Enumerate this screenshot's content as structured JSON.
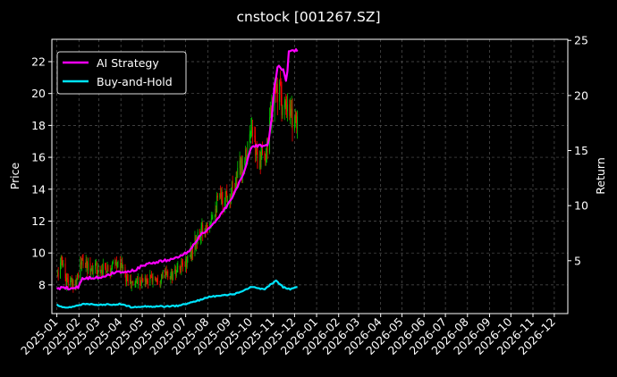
{
  "chart_data": {
    "type": "line",
    "title": "cnstock [001267.SZ]",
    "xlabel": "",
    "ylabel": "Price",
    "y2label": "Return",
    "grid": true,
    "legend_position": "top-left",
    "xlim": [
      "2024-12-25",
      "2026-12-20"
    ],
    "ylim": [
      6.2,
      23.4
    ],
    "y2lim": [
      0.2,
      25.1
    ],
    "x_ticks": [
      "2025-01",
      "2025-02",
      "2025-03",
      "2025-04",
      "2025-05",
      "2025-06",
      "2025-07",
      "2025-08",
      "2025-09",
      "2025-10",
      "2025-11",
      "2025-12",
      "2026-01",
      "2026-02",
      "2026-03",
      "2026-04",
      "2026-05",
      "2026-06",
      "2026-07",
      "2026-08",
      "2026-09",
      "2026-10",
      "2026-11",
      "2026-12"
    ],
    "y_ticks": [
      8,
      10,
      12,
      14,
      16,
      18,
      20,
      22
    ],
    "y2_ticks": [
      5,
      10,
      15,
      20,
      25
    ],
    "colors": {
      "ai": "#ff00ff",
      "bh": "#00e5ff",
      "up": "#00c000",
      "down": "#ff0000",
      "grid": "#555555"
    },
    "candles": {
      "start": "2025-01-02",
      "end": "2025-12-05",
      "anchors": [
        [
          "2025-01-02",
          8.6
        ],
        [
          "2025-01-08",
          9.6
        ],
        [
          "2025-01-14",
          8.3
        ],
        [
          "2025-01-25",
          8.0
        ],
        [
          "2025-02-05",
          9.4
        ],
        [
          "2025-02-15",
          9.1
        ],
        [
          "2025-03-01",
          9.0
        ],
        [
          "2025-03-15",
          9.1
        ],
        [
          "2025-04-01",
          9.3
        ],
        [
          "2025-04-08",
          8.5
        ],
        [
          "2025-04-15",
          8.0
        ],
        [
          "2025-04-25",
          8.3
        ],
        [
          "2025-05-15",
          8.4
        ],
        [
          "2025-06-01",
          8.6
        ],
        [
          "2025-06-15",
          8.6
        ],
        [
          "2025-07-01",
          9.4
        ],
        [
          "2025-07-15",
          10.6
        ],
        [
          "2025-08-01",
          12.0
        ],
        [
          "2025-08-15",
          13.2
        ],
        [
          "2025-09-01",
          13.8
        ],
        [
          "2025-09-15",
          15.2
        ],
        [
          "2025-10-01",
          17.5
        ],
        [
          "2025-10-10",
          16.0
        ],
        [
          "2025-10-20",
          15.8
        ],
        [
          "2025-11-01",
          19.5
        ],
        [
          "2025-11-08",
          20.5
        ],
        [
          "2025-11-15",
          19.0
        ],
        [
          "2025-11-25",
          18.5
        ],
        [
          "2025-12-05",
          18.5
        ]
      ]
    },
    "series": [
      {
        "name": "AI Strategy",
        "axis": "right",
        "points": [
          [
            "2025-01-01",
            2.45
          ],
          [
            "2025-01-10",
            2.55
          ],
          [
            "2025-01-20",
            2.5
          ],
          [
            "2025-02-01",
            2.6
          ],
          [
            "2025-02-05",
            3.4
          ],
          [
            "2025-02-20",
            3.45
          ],
          [
            "2025-03-10",
            3.5
          ],
          [
            "2025-03-20",
            3.9
          ],
          [
            "2025-04-01",
            4.0
          ],
          [
            "2025-04-20",
            4.1
          ],
          [
            "2025-05-01",
            4.6
          ],
          [
            "2025-06-01",
            5.0
          ],
          [
            "2025-06-20",
            5.3
          ],
          [
            "2025-07-05",
            5.8
          ],
          [
            "2025-07-20",
            7.2
          ],
          [
            "2025-08-10",
            8.4
          ],
          [
            "2025-09-01",
            10.3
          ],
          [
            "2025-09-10",
            11.5
          ],
          [
            "2025-09-20",
            12.8
          ],
          [
            "2025-10-01",
            15.4
          ],
          [
            "2025-10-25",
            15.5
          ],
          [
            "2025-10-30",
            18.0
          ],
          [
            "2025-11-03",
            21.0
          ],
          [
            "2025-11-08",
            22.8
          ],
          [
            "2025-11-15",
            22.3
          ],
          [
            "2025-11-20",
            21.2
          ],
          [
            "2025-11-23",
            24.0
          ],
          [
            "2025-12-05",
            24.1
          ]
        ]
      },
      {
        "name": "Buy-and-Hold",
        "axis": "right",
        "points": [
          [
            "2025-01-01",
            1.0
          ],
          [
            "2025-01-10",
            0.8
          ],
          [
            "2025-01-20",
            0.75
          ],
          [
            "2025-02-10",
            1.1
          ],
          [
            "2025-03-01",
            1.0
          ],
          [
            "2025-04-01",
            1.05
          ],
          [
            "2025-04-15",
            0.8
          ],
          [
            "2025-05-01",
            0.85
          ],
          [
            "2025-06-01",
            0.85
          ],
          [
            "2025-06-20",
            0.9
          ],
          [
            "2025-07-15",
            1.3
          ],
          [
            "2025-08-01",
            1.7
          ],
          [
            "2025-08-15",
            1.8
          ],
          [
            "2025-09-01",
            1.9
          ],
          [
            "2025-09-15",
            2.1
          ],
          [
            "2025-10-01",
            2.6
          ],
          [
            "2025-10-20",
            2.4
          ],
          [
            "2025-11-01",
            3.0
          ],
          [
            "2025-11-05",
            3.2
          ],
          [
            "2025-11-15",
            2.6
          ],
          [
            "2025-11-25",
            2.4
          ],
          [
            "2025-12-05",
            2.6
          ]
        ]
      }
    ]
  }
}
